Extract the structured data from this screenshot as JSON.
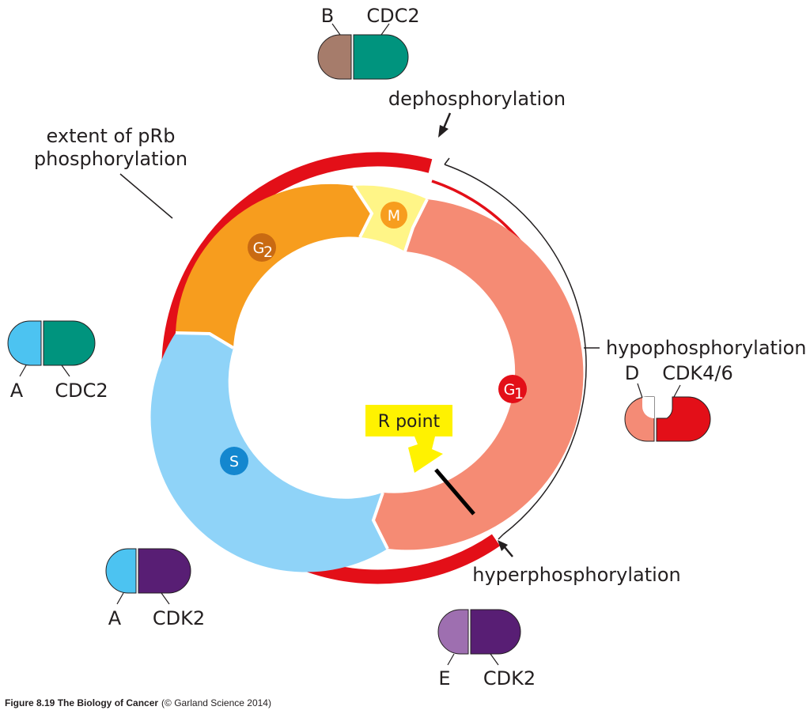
{
  "labels": {
    "extent": [
      "extent of pRb",
      "phosphorylation"
    ],
    "dephosphorylation": "dephosphorylation",
    "hypophosphorylation": "hypophosphorylation",
    "hyperphosphorylation": "hyperphosphorylation",
    "r_point": "R point"
  },
  "phases": {
    "m": "M",
    "g2": "G",
    "g2_sub": "2",
    "s": "S",
    "g1": "G",
    "g1_sub": "1"
  },
  "complexes": {
    "b_cdc2": {
      "cyclin": "B",
      "cdk": "CDC2"
    },
    "a_cdc2": {
      "cyclin": "A",
      "cdk": "CDC2"
    },
    "d_cdk46": {
      "cyclin": "D",
      "cdk": "CDK4/6"
    },
    "a_cdk2": {
      "cyclin": "A",
      "cdk": "CDK2"
    },
    "e_cdk2": {
      "cyclin": "E",
      "cdk": "CDK2"
    }
  },
  "caption": {
    "bold": "Figure 8.19 The Biology of Cancer",
    "normal": "(© Garland Science 2014)"
  },
  "colors": {
    "prb_red": "#e30f18",
    "g1": "#f58b74",
    "s": "#8fd3f8",
    "g2": "#f79d1e",
    "m": "#fff587",
    "yellow_callout": "#fff200",
    "cdc2_teal": "#00947e",
    "cdk2_purple": "#581e74",
    "cyclin_a_blue": "#4cc3f1",
    "cyclin_b_brown": "#a67c6b",
    "cyclin_d_salmon": "#f48b76",
    "cyclin_e_lavender": "#9e6fb0"
  }
}
